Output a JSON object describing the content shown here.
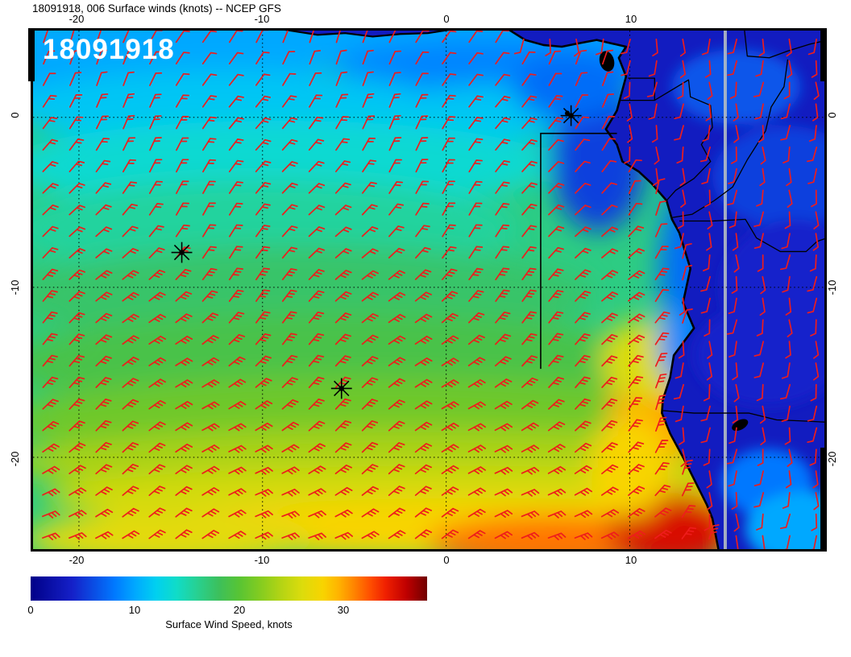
{
  "title": "18091918, 006 Surface winds (knots) -- NCEP GFS",
  "overlay_label": "18091918",
  "axes": {
    "top_labels": [
      "-20",
      "-10",
      "0",
      "10"
    ],
    "bottom_labels": [
      "-20",
      "-10",
      "0",
      "10"
    ],
    "left_labels": [
      "0",
      "-10",
      "-20"
    ],
    "right_labels": [
      "0",
      "-10",
      "-20"
    ],
    "lon_ticks": [
      -20,
      -10,
      0,
      10
    ],
    "lat_ticks": [
      0,
      -10,
      -20
    ],
    "lon_range": [
      -22.5,
      20.6
    ],
    "lat_range": [
      -25.4,
      5.1
    ]
  },
  "colorbar": {
    "label": "Surface Wind Speed, knots",
    "tick_labels": [
      "0",
      "10",
      "20",
      "30"
    ],
    "tick_values": [
      0,
      10,
      20,
      30
    ],
    "min": 0,
    "max": 38,
    "stops": [
      {
        "v": 0,
        "c": "#000088"
      },
      {
        "v": 4,
        "c": "#1520c8"
      },
      {
        "v": 8,
        "c": "#0078ff"
      },
      {
        "v": 10,
        "c": "#00a8ff"
      },
      {
        "v": 12,
        "c": "#00d0f0"
      },
      {
        "v": 14,
        "c": "#10dcc8"
      },
      {
        "v": 16,
        "c": "#28d090"
      },
      {
        "v": 18,
        "c": "#3cc05c"
      },
      {
        "v": 20,
        "c": "#58c434"
      },
      {
        "v": 22,
        "c": "#84cc20"
      },
      {
        "v": 24,
        "c": "#b4d414"
      },
      {
        "v": 26,
        "c": "#dcdc0c"
      },
      {
        "v": 28,
        "c": "#f8d400"
      },
      {
        "v": 29.5,
        "c": "#ffb400"
      },
      {
        "v": 31,
        "c": "#ff8400"
      },
      {
        "v": 32.5,
        "c": "#ff5000"
      },
      {
        "v": 34,
        "c": "#f02000"
      },
      {
        "v": 36,
        "c": "#c00000"
      },
      {
        "v": 38,
        "c": "#700000"
      }
    ]
  },
  "chart_data": {
    "type": "heatmap",
    "title": "Surface winds (knots), NCEP GFS, 18091918 + 006h",
    "units": "knots",
    "wind_direction_note": "SE trade winds over ocean (red wind barbs), light northerly barbs over land",
    "lon_range": [
      -22.5,
      20.6
    ],
    "lat_range": [
      -25.4,
      5.1
    ],
    "grid_lons": [
      -20,
      -10,
      0,
      10
    ],
    "grid_lats": [
      0,
      -10,
      -20
    ],
    "wind_speed_samples": {
      "lons": [
        -20,
        -10,
        0,
        10,
        15
      ],
      "lats": [
        0,
        -5,
        -10,
        -15,
        -20,
        -25
      ],
      "speed_knots": [
        [
          12,
          12,
          11,
          6,
          5
        ],
        [
          15,
          15,
          14,
          8,
          4
        ],
        [
          17,
          17,
          17,
          8,
          4
        ],
        [
          19,
          20,
          20,
          26,
          5
        ],
        [
          22,
          23,
          24,
          28,
          5
        ],
        [
          27,
          28,
          31,
          35,
          8
        ]
      ]
    },
    "base_speed": 16.5,
    "speed_blobs": [
      [
        -2,
        4.8,
        28,
        2.0,
        10
      ],
      [
        3,
        3.0,
        9,
        1.6,
        8.5
      ],
      [
        -16,
        2.8,
        9,
        2.4,
        10
      ],
      [
        -12,
        0.6,
        12,
        2.2,
        11.5
      ],
      [
        3,
        0.3,
        7,
        1.6,
        11.5
      ],
      [
        -9,
        -2.8,
        15,
        2.6,
        13.5
      ],
      [
        -10,
        -6.5,
        14,
        2.8,
        15.5
      ],
      [
        -8,
        -10.5,
        16,
        3.0,
        17.5
      ],
      [
        -6,
        -14.5,
        18,
        3.0,
        19
      ],
      [
        -4,
        -17.8,
        20,
        2.6,
        21
      ],
      [
        -2,
        -20.3,
        22,
        2.0,
        23.5
      ],
      [
        0,
        -22.3,
        22,
        1.8,
        25.5
      ],
      [
        2,
        -24.2,
        20,
        1.8,
        28
      ],
      [
        -15,
        -24.8,
        8,
        1.6,
        26.5
      ],
      [
        6,
        -25,
        7,
        1.6,
        31.5
      ],
      [
        12.3,
        -24.3,
        3.5,
        2.2,
        35
      ],
      [
        11.3,
        -17.5,
        2.4,
        3.0,
        30
      ],
      [
        10.8,
        -14.3,
        2.4,
        2.4,
        26
      ],
      [
        10.0,
        -20.5,
        2.2,
        3.0,
        28
      ],
      [
        8.3,
        -2.5,
        2.6,
        4.2,
        5.5
      ],
      [
        6.8,
        1.8,
        3.2,
        2.0,
        7.5
      ],
      [
        13.2,
        -8.8,
        1.6,
        5.0,
        7.5
      ],
      [
        12.9,
        -13.3,
        1.3,
        2.6,
        8.5
      ]
    ],
    "land_speed": 3.5,
    "land_blobs": [
      [
        15.8,
        1.8,
        3.5,
        2.2,
        6.5
      ],
      [
        18.5,
        -3.5,
        4,
        3,
        5.5
      ],
      [
        19,
        -10,
        4,
        4,
        4.2
      ],
      [
        17.5,
        -14,
        4,
        3,
        4.2
      ],
      [
        17.5,
        -21.5,
        2.5,
        2,
        8
      ],
      [
        19.5,
        -24.2,
        3.2,
        2.2,
        10
      ]
    ],
    "land_outline": [
      [
        3.2,
        5.3
      ],
      [
        4.3,
        4.55
      ],
      [
        5.3,
        4.25
      ],
      [
        6.3,
        4.15
      ],
      [
        7.2,
        4.35
      ],
      [
        8.2,
        4.55
      ],
      [
        9.0,
        4.35
      ],
      [
        9.8,
        4.15
      ],
      [
        9.4,
        3.5
      ],
      [
        9.8,
        2.4
      ],
      [
        9.5,
        1.2
      ],
      [
        9.3,
        0.4
      ],
      [
        8.7,
        -0.7
      ],
      [
        9.3,
        -1.6
      ],
      [
        9.6,
        -2.6
      ],
      [
        10.5,
        -3.2
      ],
      [
        11.2,
        -3.9
      ],
      [
        12.0,
        -4.9
      ],
      [
        12.3,
        -6.0
      ],
      [
        12.7,
        -6.8
      ],
      [
        13.1,
        -8.2
      ],
      [
        13.3,
        -8.9
      ],
      [
        12.9,
        -10.9
      ],
      [
        13.5,
        -12.4
      ],
      [
        12.4,
        -14.0
      ],
      [
        12.2,
        -15.3
      ],
      [
        11.8,
        -16.6
      ],
      [
        11.75,
        -17.4
      ],
      [
        12.2,
        -18.6
      ],
      [
        12.9,
        -20.0
      ],
      [
        13.6,
        -21.5
      ],
      [
        14.2,
        -22.8
      ],
      [
        14.5,
        -23.6
      ],
      [
        14.9,
        -25.8
      ]
    ],
    "coast_segments": [
      [
        [
          -8.8,
          5.15
        ],
        [
          -7,
          4.85
        ],
        [
          -5.5,
          4.95
        ],
        [
          -4,
          4.75
        ],
        [
          -2.5,
          4.9
        ],
        [
          -1,
          4.95
        ],
        [
          0.2,
          5.15
        ]
      ]
    ],
    "borders": [
      [
        [
          9.9,
          2.3
        ],
        [
          11.35,
          2.3
        ],
        [
          11.35,
          1.0
        ],
        [
          9.5,
          1.0
        ]
      ],
      [
        [
          11.35,
          1.0
        ],
        [
          13.2,
          2.2
        ],
        [
          13.3,
          1.2
        ],
        [
          14.4,
          0.7
        ],
        [
          14.5,
          -0.6
        ],
        [
          13.9,
          -1.6
        ],
        [
          14.4,
          -2.6
        ],
        [
          13.5,
          -3.6
        ],
        [
          12.5,
          -4.3
        ],
        [
          12.0,
          -4.9
        ]
      ],
      [
        [
          12.3,
          -5.9
        ],
        [
          13.4,
          -5.7
        ],
        [
          14.6,
          -4.9
        ],
        [
          15.6,
          -4.1
        ],
        [
          16.4,
          -2.5
        ],
        [
          17.4,
          -0.8
        ],
        [
          17.7,
          0.6
        ],
        [
          18.4,
          1.8
        ],
        [
          18.6,
          3.4
        ]
      ],
      [
        [
          12.7,
          -6.1
        ],
        [
          14.5,
          -6.1
        ],
        [
          16.3,
          -6.0
        ],
        [
          16.9,
          -7.1
        ],
        [
          18.2,
          -7.9
        ],
        [
          19.6,
          -7.9
        ],
        [
          20.2,
          -7.3
        ],
        [
          21,
          -7.0
        ]
      ],
      [
        [
          11.75,
          -17.25
        ],
        [
          13.5,
          -17.4
        ],
        [
          16.5,
          -17.4
        ],
        [
          18.0,
          -17.8
        ],
        [
          19.2,
          -17.85
        ],
        [
          21,
          -17.95
        ]
      ],
      [
        [
          16.2,
          5.6
        ],
        [
          16.4,
          3.6
        ],
        [
          17.6,
          3.5
        ],
        [
          18.6,
          3.9
        ],
        [
          19.8,
          4.3
        ],
        [
          21,
          4.6
        ]
      ]
    ],
    "islands": [
      {
        "name": "bioko",
        "lon": 8.75,
        "lat": 3.3,
        "rx": 9,
        "ry": 13,
        "rot": -15
      },
      {
        "name": "sao-tome",
        "lon": 6.6,
        "lat": 0.23,
        "rx": 3,
        "ry": 3.5,
        "rot": 0
      },
      {
        "name": "etosha-pan",
        "lon": 16.0,
        "lat": -18.1,
        "rx": 11,
        "ry": 6,
        "rot": -28
      }
    ],
    "markers": [
      {
        "name": "sao-tome-star",
        "lon": 6.8,
        "lat": 0.1
      },
      {
        "name": "ascension-star",
        "lon": -14.4,
        "lat": -7.95
      },
      {
        "name": "st-helena-star",
        "lon": -5.7,
        "lat": -15.95
      }
    ],
    "section_line": [
      [
        9.3,
        -0.95
      ],
      [
        5.15,
        -0.95
      ],
      [
        5.15,
        -14.8
      ]
    ],
    "grey_meridian_lon": 15.2,
    "wind_barbs": {
      "lon_start": -21.9,
      "lon_step": 1.45,
      "cols": 30,
      "lat_start": 4.5,
      "lat_step": 1.27,
      "rows": 24,
      "color": "#ee1c1c"
    }
  }
}
